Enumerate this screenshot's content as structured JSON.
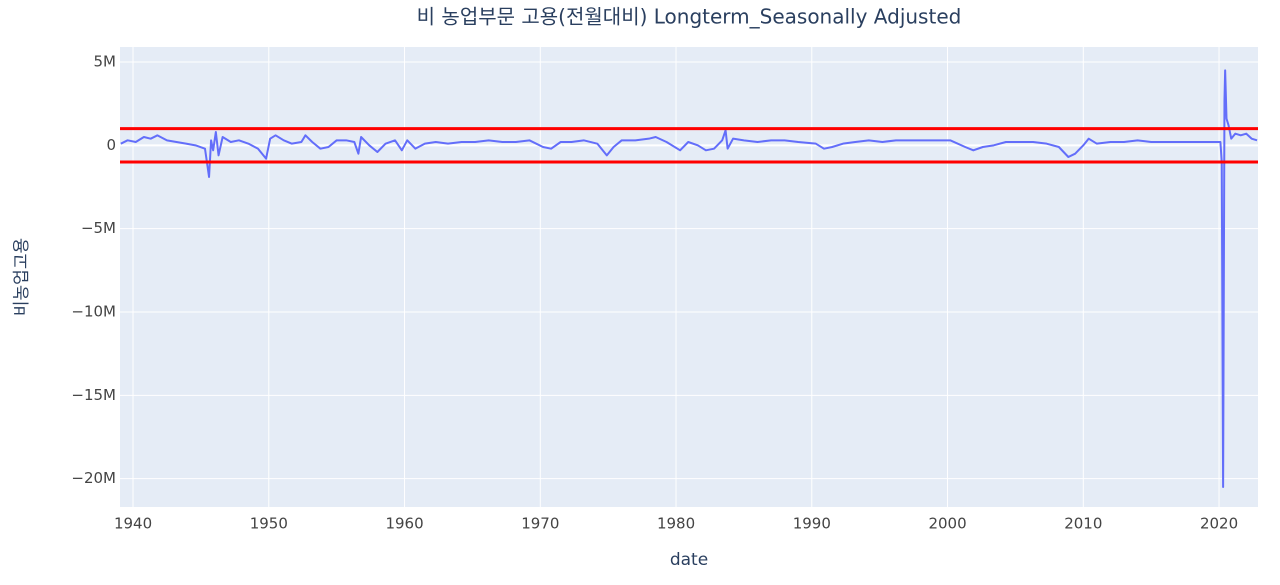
{
  "chart_data": {
    "type": "line",
    "title": "비 농업부문 고용(전월대비) Longterm_Seasonally Adjusted",
    "x_label": "date",
    "y_label": "비농업고용",
    "xlim": [
      1939.04,
      2022.87
    ],
    "xticks": [
      1940,
      1950,
      1960,
      1970,
      1980,
      1990,
      2000,
      2010,
      2020
    ],
    "ylim": [
      -21700000,
      5900000
    ],
    "yticks": [
      {
        "value": 5000000,
        "label": "5M"
      },
      0,
      {
        "value": -5000000,
        "label": "−5M"
      },
      {
        "value": -10000000,
        "label": "−10M"
      },
      {
        "value": -15000000,
        "label": "−15M"
      },
      {
        "value": -20000000,
        "label": "−20M"
      }
    ],
    "grid": true,
    "hlines": {
      "color": "#ff0000",
      "values": [
        1000000,
        -1000000
      ]
    },
    "series": [
      {
        "color": "#636efa",
        "x": [
          1939.1,
          1939.6,
          1940.2,
          1940.8,
          1941.3,
          1941.8,
          1942.5,
          1943.2,
          1943.9,
          1944.6,
          1945.3,
          1945.6,
          1945.75,
          1945.9,
          1946.1,
          1946.3,
          1946.6,
          1947.2,
          1947.8,
          1948.5,
          1949.2,
          1949.8,
          1950.1,
          1950.5,
          1951.1,
          1951.7,
          1952.4,
          1952.7,
          1953.2,
          1953.8,
          1954.4,
          1955.0,
          1955.7,
          1956.3,
          1956.6,
          1956.8,
          1957.4,
          1958.0,
          1958.6,
          1959.3,
          1959.8,
          1960.2,
          1960.8,
          1961.5,
          1962.3,
          1963.2,
          1964.2,
          1965.2,
          1966.2,
          1967.2,
          1968.2,
          1969.2,
          1970.2,
          1970.8,
          1971.5,
          1972.3,
          1973.2,
          1974.2,
          1974.9,
          1975.4,
          1976.0,
          1977.0,
          1978.0,
          1978.5,
          1979.3,
          1980.3,
          1980.9,
          1981.6,
          1982.2,
          1982.8,
          1983.4,
          1983.65,
          1983.8,
          1984.2,
          1985,
          1986,
          1987,
          1988,
          1989,
          1990.3,
          1990.9,
          1991.5,
          1992.3,
          1993.2,
          1994.2,
          1995.2,
          1996.2,
          1997.2,
          1998.2,
          1999.2,
          2000.2,
          2001.3,
          2001.9,
          2002.6,
          2003.4,
          2004.3,
          2005.3,
          2006.3,
          2007.3,
          2008.2,
          2008.9,
          2009.4,
          2010.0,
          2010.4,
          2011,
          2012,
          2013,
          2014,
          2015,
          2016,
          2017,
          2018,
          2019,
          2020.1,
          2020.2,
          2020.3,
          2020.4,
          2020.45,
          2020.55,
          2020.7,
          2020.9,
          2021.2,
          2021.6,
          2022.0,
          2022.4,
          2022.8
        ],
        "values": [
          100000,
          300000,
          200000,
          500000,
          400000,
          600000,
          300000,
          200000,
          100000,
          0,
          -200000,
          -1900000,
          300000,
          -300000,
          800000,
          -600000,
          500000,
          200000,
          300000,
          100000,
          -200000,
          -800000,
          400000,
          600000,
          300000,
          100000,
          200000,
          600000,
          200000,
          -200000,
          -100000,
          300000,
          300000,
          200000,
          -500000,
          500000,
          0,
          -400000,
          100000,
          300000,
          -300000,
          300000,
          -200000,
          100000,
          200000,
          100000,
          200000,
          200000,
          300000,
          200000,
          200000,
          300000,
          -100000,
          -200000,
          200000,
          200000,
          300000,
          100000,
          -600000,
          -100000,
          300000,
          300000,
          400000,
          500000,
          200000,
          -300000,
          200000,
          0,
          -300000,
          -200000,
          300000,
          900000,
          -200000,
          400000,
          300000,
          200000,
          300000,
          300000,
          200000,
          100000,
          -200000,
          -100000,
          100000,
          200000,
          300000,
          200000,
          300000,
          300000,
          300000,
          300000,
          300000,
          -100000,
          -300000,
          -100000,
          0,
          200000,
          200000,
          200000,
          100000,
          -100000,
          -700000,
          -500000,
          0,
          400000,
          100000,
          200000,
          200000,
          300000,
          200000,
          200000,
          200000,
          200000,
          200000,
          200000,
          -1000000,
          -20500000,
          2700000,
          4500000,
          1600000,
          1200000,
          400000,
          700000,
          600000,
          700000,
          400000,
          300000
        ]
      }
    ]
  }
}
